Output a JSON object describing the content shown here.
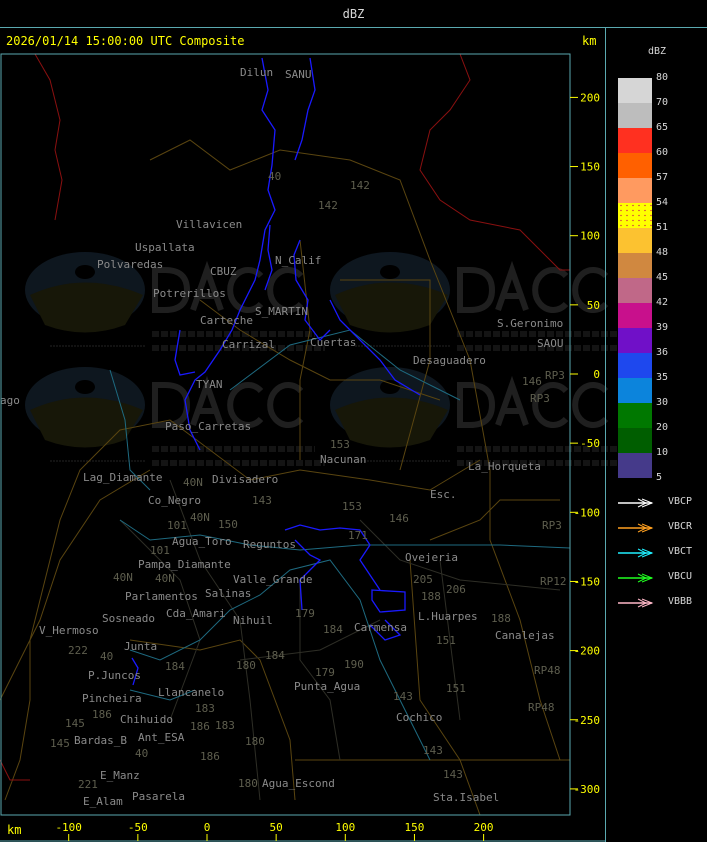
{
  "header": {
    "title": "dBZ"
  },
  "map": {
    "title": "2026/01/14 15:00:00 UTC Composite",
    "axis_unit": "km",
    "x_ticks": [
      -100,
      -50,
      0,
      50,
      100,
      150,
      200
    ],
    "y_ticks": [
      200,
      150,
      100,
      50,
      0,
      -50,
      -100,
      -150,
      -200,
      -250,
      -300
    ],
    "echo_color": "#1a1aff",
    "watermark": {
      "logo_text": "DACC",
      "line1": "Dirección de Agricultura",
      "line2": "y Contingencias Climáticas",
      "url": "http://www.contingencias.mendoza.gov.ar"
    },
    "places": [
      "Dilun",
      "SANU",
      "Villavicen",
      "Uspallata",
      "Polvaredas",
      "N_Calif",
      "Potrerillos",
      "S_MARTIN",
      "Carrizal",
      "Cuertas",
      "Desaguadero",
      "S.Geronimo",
      "SAOU",
      "Paso_Carretas",
      "Nacunan",
      "Lag_Diamante",
      "Co_Negro",
      "Divisadero",
      "La_Horqueta",
      "Esc.",
      "Agua_Toro",
      "Reguntos",
      "Ovejeria",
      "Pampa_Diamante",
      "Valle_Grande",
      "Salinas",
      "Cda_Amari",
      "Parlamentos",
      "Sosneado",
      "Nihuil",
      "Carmensa",
      "L.Huarpes",
      "Canalejas",
      "V_Hermoso",
      "Junta",
      "P.Juncos",
      "Pincheira",
      "Llancanelo",
      "Chihuido",
      "Punta_Agua",
      "Ant_ESA",
      "Bardas_B",
      "Cochico",
      "E_Manz",
      "Agua_Escond",
      "E_Alam",
      "Pasarela",
      "Sta.Isabel",
      "ago",
      "TYAN",
      "Carteche",
      "CBUZ"
    ],
    "routes": [
      "40",
      "142",
      "142",
      "153",
      "143",
      "153",
      "146",
      "150",
      "101",
      "171",
      "205",
      "206",
      "188",
      "151",
      "179",
      "184",
      "180",
      "184",
      "179",
      "190",
      "184",
      "183",
      "186",
      "186",
      "183",
      "145",
      "145",
      "180",
      "186",
      "180",
      "143",
      "143",
      "143",
      "151",
      "188",
      "RP3",
      "RP3",
      "RP3",
      "RP12",
      "RP48",
      "RP48",
      "146",
      "40N",
      "40N",
      "40N",
      "40N",
      "101",
      "222",
      "221",
      "40",
      "40"
    ]
  },
  "legend": {
    "unit": "dBZ",
    "levels": [
      "80",
      "70",
      "65",
      "60",
      "57",
      "54",
      "51",
      "48",
      "45",
      "42",
      "39",
      "36",
      "35",
      "30",
      "20",
      "10",
      "5"
    ],
    "colors": [
      "#d6d6d6",
      "#bdbdbd",
      "#ff3020",
      "#ff6000",
      "#ff9a60",
      "#ffff00",
      "#fcc230",
      "#d08840",
      "#c06888",
      "#c8108c",
      "#7010c8",
      "#1e48ee",
      "#0c84dc",
      "#007800",
      "#005e00",
      "#453a8a"
    ],
    "radars": [
      {
        "name": "VBCP",
        "color": "#ffffff"
      },
      {
        "name": "VBCR",
        "color": "#ffa020"
      },
      {
        "name": "VBCT",
        "color": "#20f0ff"
      },
      {
        "name": "VBCU",
        "color": "#20ff20"
      },
      {
        "name": "VBBB",
        "color": "#ffb8c8"
      }
    ]
  }
}
